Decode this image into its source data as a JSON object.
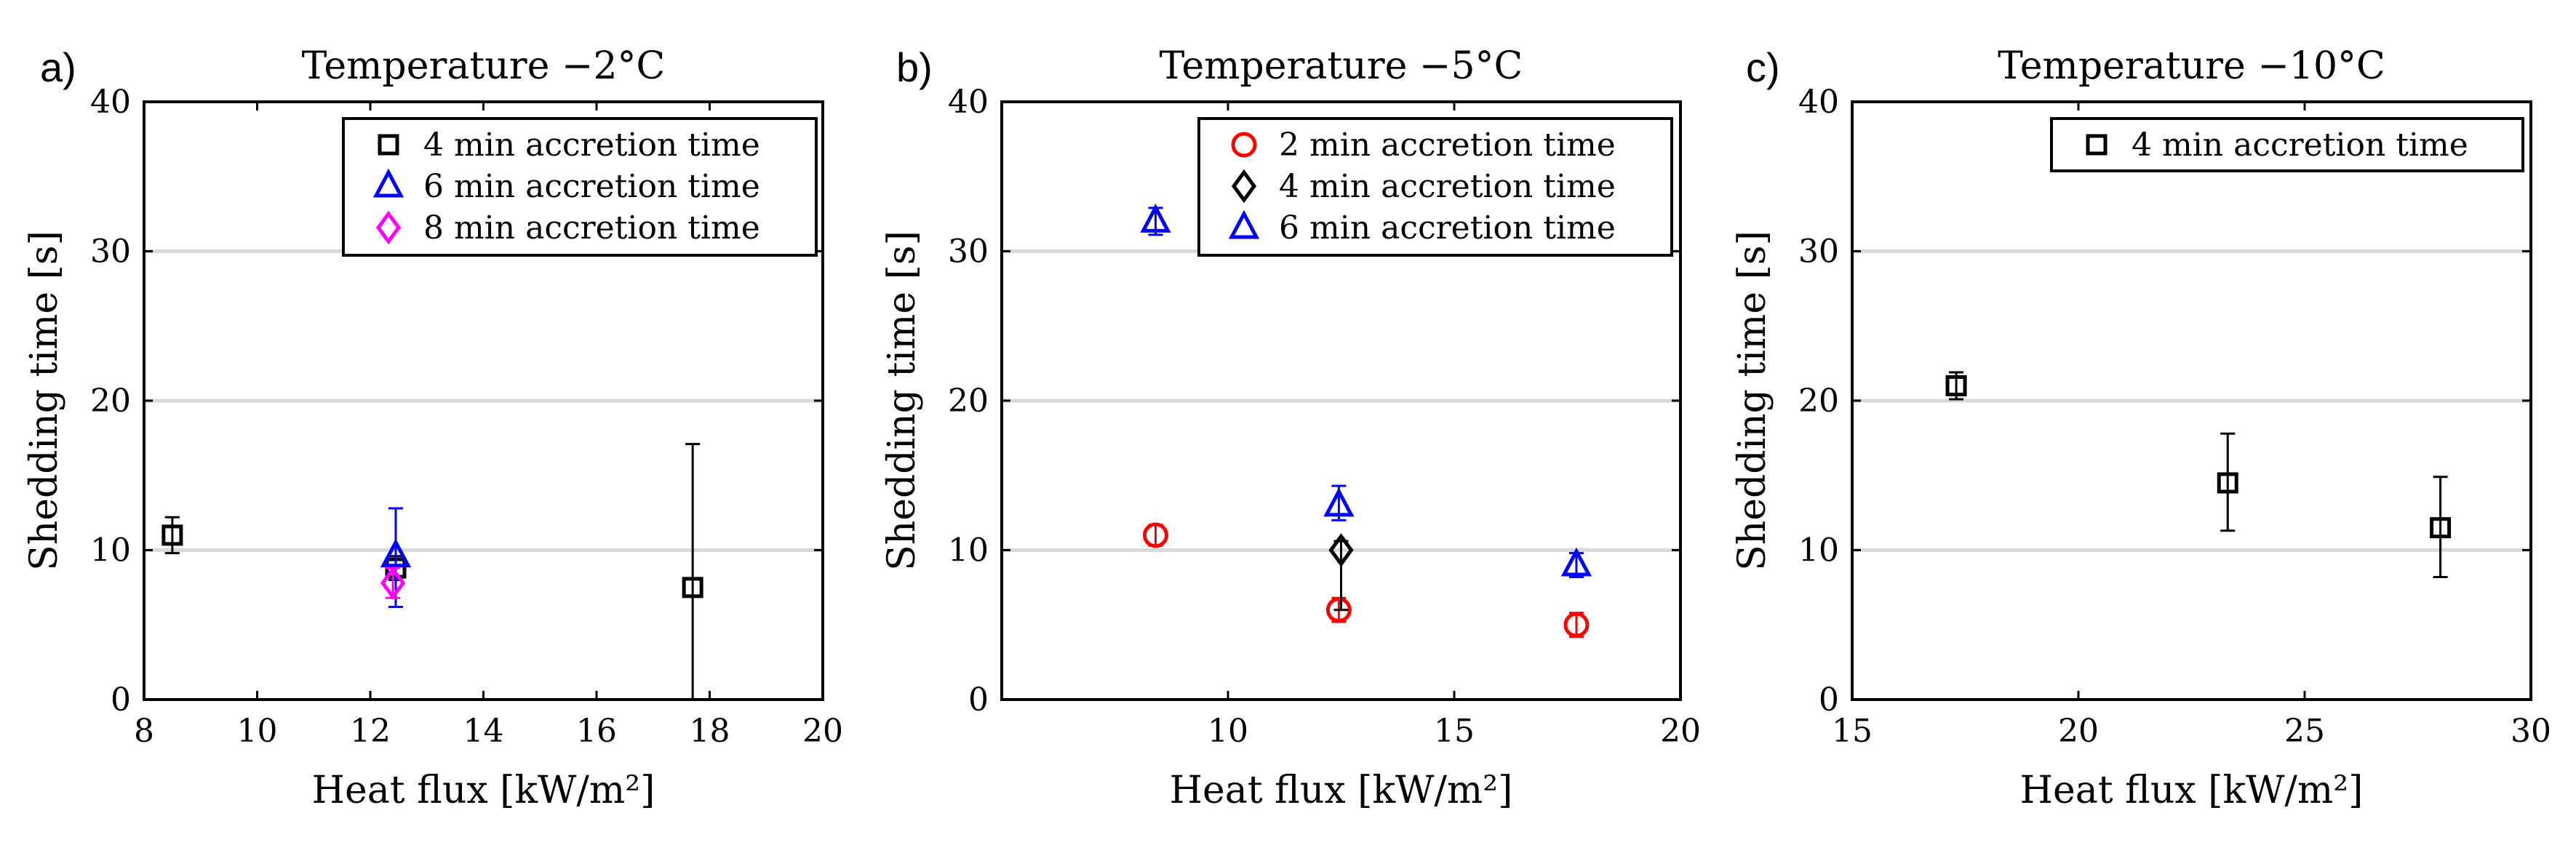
{
  "chart_data": [
    {
      "type": "scatter",
      "panel": "a)",
      "title": "Temperature −2°C",
      "xlabel": "Heat flux [kW/m²]",
      "ylabel": "Shedding time [s]",
      "xlim": [
        8,
        20
      ],
      "ylim": [
        0,
        40
      ],
      "xticks": [
        8,
        10,
        12,
        14,
        16,
        18,
        20
      ],
      "yticks": [
        0,
        10,
        20,
        30,
        40
      ],
      "grid": "horizontal",
      "legend_position": "top-right",
      "series": [
        {
          "name": "4 min accretion time",
          "marker": "square",
          "color": "#000000",
          "points": [
            {
              "x": 8.5,
              "y": 11.0,
              "err_lo": 1.2,
              "err_hi": 1.2
            },
            {
              "x": 12.45,
              "y": 8.8,
              "err_lo": 0.8,
              "err_hi": 0.8
            },
            {
              "x": 17.7,
              "y": 7.5,
              "err_lo": 7.5,
              "err_hi": 9.6
            }
          ]
        },
        {
          "name": "6 min accretion time",
          "marker": "triangle",
          "color": "#0000ff",
          "points": [
            {
              "x": 12.45,
              "y": 9.6,
              "err_lo": 3.4,
              "err_hi": 3.2
            }
          ]
        },
        {
          "name": "8 min accretion time",
          "marker": "diamond",
          "color": "#ff00ff",
          "points": [
            {
              "x": 12.4,
              "y": 7.8,
              "err_lo": 1.0,
              "err_hi": 1.0
            }
          ]
        }
      ]
    },
    {
      "type": "scatter",
      "panel": "b)",
      "title": "Temperature −5°C",
      "xlabel": "Heat flux [kW/m²]",
      "ylabel": "Shedding time [s]",
      "xlim": [
        5,
        20
      ],
      "ylim": [
        0,
        40
      ],
      "xticks": [
        10,
        15,
        20
      ],
      "yticks": [
        0,
        10,
        20,
        30,
        40
      ],
      "grid": "horizontal",
      "legend_position": "top-right",
      "series": [
        {
          "name": "2 min accretion time",
          "marker": "circle",
          "color": "#ff0000",
          "points": [
            {
              "x": 8.4,
              "y": 11.0,
              "err_lo": 0.7,
              "err_hi": 0.7
            },
            {
              "x": 12.45,
              "y": 6.0,
              "err_lo": 0.8,
              "err_hi": 0.8
            },
            {
              "x": 17.7,
              "y": 5.0,
              "err_lo": 0.8,
              "err_hi": 0.8
            }
          ]
        },
        {
          "name": "4 min accretion time",
          "marker": "diamond",
          "color": "#000000",
          "points": [
            {
              "x": 12.5,
              "y": 10.0,
              "err_lo": 4.0,
              "err_hi": 0.6
            }
          ]
        },
        {
          "name": "6 min accretion time",
          "marker": "triangle",
          "color": "#0000ff",
          "points": [
            {
              "x": 8.4,
              "y": 32.0,
              "err_lo": 0.9,
              "err_hi": 0.9
            },
            {
              "x": 12.45,
              "y": 13.0,
              "err_lo": 1.0,
              "err_hi": 1.3
            },
            {
              "x": 17.7,
              "y": 9.0,
              "err_lo": 0.8,
              "err_hi": 0.8
            }
          ]
        }
      ]
    },
    {
      "type": "scatter",
      "panel": "c)",
      "title": "Temperature −10°C",
      "xlabel": "Heat flux [kW/m²]",
      "ylabel": "Shedding time [s]",
      "xlim": [
        15,
        30
      ],
      "ylim": [
        0,
        40
      ],
      "xticks": [
        15,
        20,
        25,
        30
      ],
      "yticks": [
        0,
        10,
        20,
        30,
        40
      ],
      "grid": "horizontal",
      "legend_position": "top-right",
      "series": [
        {
          "name": "4 min accretion time",
          "marker": "square",
          "color": "#000000",
          "points": [
            {
              "x": 17.3,
              "y": 21.0,
              "err_lo": 0.9,
              "err_hi": 0.9
            },
            {
              "x": 23.3,
              "y": 14.5,
              "err_lo": 3.2,
              "err_hi": 3.3
            },
            {
              "x": 28.0,
              "y": 11.5,
              "err_lo": 3.3,
              "err_hi": 3.4
            }
          ]
        }
      ]
    }
  ]
}
